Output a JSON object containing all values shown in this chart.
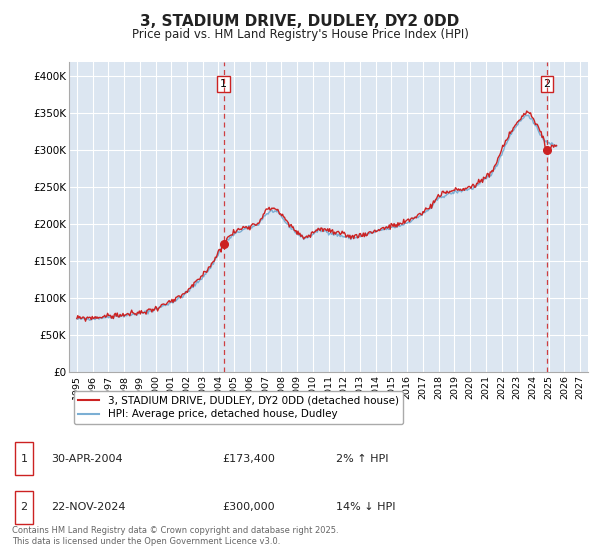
{
  "title": "3, STADIUM DRIVE, DUDLEY, DY2 0DD",
  "subtitle": "Price paid vs. HM Land Registry's House Price Index (HPI)",
  "title_fontsize": 11,
  "subtitle_fontsize": 8.5,
  "background_color": "#ffffff",
  "plot_bg_color": "#dce6f1",
  "grid_color": "#ffffff",
  "hpi_color": "#7bafd4",
  "price_color": "#cc2222",
  "ylim": [
    0,
    420000
  ],
  "xlim_start": 1994.5,
  "xlim_end": 2027.5,
  "yticks": [
    0,
    50000,
    100000,
    150000,
    200000,
    250000,
    300000,
    350000,
    400000
  ],
  "ytick_labels": [
    "£0",
    "£50K",
    "£100K",
    "£150K",
    "£200K",
    "£250K",
    "£300K",
    "£350K",
    "£400K"
  ],
  "xticks": [
    1995,
    1996,
    1997,
    1998,
    1999,
    2000,
    2001,
    2002,
    2003,
    2004,
    2005,
    2006,
    2007,
    2008,
    2009,
    2010,
    2011,
    2012,
    2013,
    2014,
    2015,
    2016,
    2017,
    2018,
    2019,
    2020,
    2021,
    2022,
    2023,
    2024,
    2025,
    2026,
    2027
  ],
  "event1_x": 2004.33,
  "event1_y": 173400,
  "event1_label": "1",
  "event2_x": 2024.9,
  "event2_y": 300000,
  "event2_label": "2",
  "legend_line1": "3, STADIUM DRIVE, DUDLEY, DY2 0DD (detached house)",
  "legend_line2": "HPI: Average price, detached house, Dudley",
  "table_row1_num": "1",
  "table_row1_date": "30-APR-2004",
  "table_row1_price": "£173,400",
  "table_row1_hpi": "2% ↑ HPI",
  "table_row2_num": "2",
  "table_row2_date": "22-NOV-2024",
  "table_row2_price": "£300,000",
  "table_row2_hpi": "14% ↓ HPI",
  "footer": "Contains HM Land Registry data © Crown copyright and database right 2025.\nThis data is licensed under the Open Government Licence v3.0."
}
